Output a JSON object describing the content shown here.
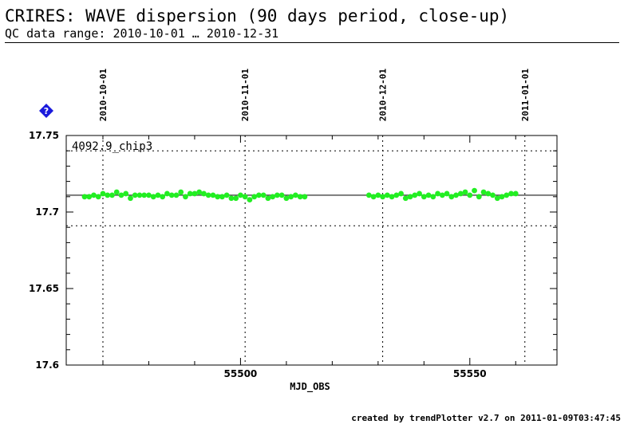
{
  "header": {
    "title": "CRIRES: WAVE dispersion (90 days period, close-up)",
    "subtitle": "QC data range: 2010-10-01 … 2010-12-31"
  },
  "footer": {
    "credit": "created by trendPlotter v2.7 on 2011-01-09T03:47:45"
  },
  "help_icon": {
    "icon": "question-diamond-icon",
    "color": "#1a1adc"
  },
  "chart_data": {
    "type": "scatter",
    "title": "CRIRES: WAVE dispersion (90 days period, close-up)",
    "subtitle": "QC data range: 2010-10-01 … 2010-12-31",
    "xlabel": "MJD_OBS",
    "ylabel": "",
    "series_label": "4092.9_chip3",
    "xlim": [
      55462,
      55569
    ],
    "ylim": [
      17.6,
      17.75
    ],
    "x_ticks": [
      55500,
      55550
    ],
    "y_ticks": [
      17.6,
      17.65,
      17.7,
      17.75
    ],
    "y_tick_labels": [
      "17.6",
      "17.65",
      "17.7",
      "17.75"
    ],
    "date_markers": [
      {
        "label": "2010-10-01",
        "mjd": 55470
      },
      {
        "label": "2010-11-01",
        "mjd": 55501
      },
      {
        "label": "2010-12-01",
        "mjd": 55531
      },
      {
        "label": "2011-01-01",
        "mjd": 55562
      }
    ],
    "reference_lines": {
      "mean": 17.711,
      "upper": 17.74,
      "lower": 17.691
    },
    "point_color": "#22ee22",
    "grid": false,
    "series": [
      {
        "points": [
          [
            55466,
            17.71
          ],
          [
            55467,
            17.71
          ],
          [
            55468,
            17.711
          ],
          [
            55469,
            17.71
          ],
          [
            55470,
            17.712
          ],
          [
            55471,
            17.711
          ],
          [
            55472,
            17.711
          ],
          [
            55473,
            17.713
          ],
          [
            55474,
            17.711
          ],
          [
            55475,
            17.712
          ],
          [
            55476,
            17.709
          ],
          [
            55477,
            17.711
          ],
          [
            55478,
            17.711
          ],
          [
            55479,
            17.711
          ],
          [
            55480,
            17.711
          ],
          [
            55481,
            17.71
          ],
          [
            55482,
            17.711
          ],
          [
            55483,
            17.71
          ],
          [
            55484,
            17.712
          ],
          [
            55485,
            17.711
          ],
          [
            55486,
            17.711
          ],
          [
            55487,
            17.713
          ],
          [
            55488,
            17.71
          ],
          [
            55489,
            17.712
          ],
          [
            55490,
            17.712
          ],
          [
            55491,
            17.713
          ],
          [
            55492,
            17.712
          ],
          [
            55493,
            17.711
          ],
          [
            55494,
            17.711
          ],
          [
            55495,
            17.71
          ],
          [
            55496,
            17.71
          ],
          [
            55497,
            17.711
          ],
          [
            55498,
            17.709
          ],
          [
            55499,
            17.709
          ],
          [
            55500,
            17.711
          ],
          [
            55501,
            17.71
          ],
          [
            55502,
            17.708
          ],
          [
            55503,
            17.71
          ],
          [
            55504,
            17.711
          ],
          [
            55505,
            17.711
          ],
          [
            55506,
            17.709
          ],
          [
            55507,
            17.71
          ],
          [
            55508,
            17.711
          ],
          [
            55509,
            17.711
          ],
          [
            55510,
            17.709
          ],
          [
            55511,
            17.71
          ],
          [
            55512,
            17.711
          ],
          [
            55513,
            17.71
          ],
          [
            55514,
            17.71
          ],
          [
            55528,
            17.711
          ],
          [
            55529,
            17.71
          ],
          [
            55530,
            17.711
          ],
          [
            55531,
            17.71
          ],
          [
            55532,
            17.711
          ],
          [
            55533,
            17.71
          ],
          [
            55534,
            17.711
          ],
          [
            55535,
            17.712
          ],
          [
            55536,
            17.709
          ],
          [
            55537,
            17.71
          ],
          [
            55538,
            17.711
          ],
          [
            55539,
            17.712
          ],
          [
            55540,
            17.71
          ],
          [
            55541,
            17.711
          ],
          [
            55542,
            17.71
          ],
          [
            55543,
            17.712
          ],
          [
            55544,
            17.711
          ],
          [
            55545,
            17.712
          ],
          [
            55546,
            17.71
          ],
          [
            55547,
            17.711
          ],
          [
            55548,
            17.712
          ],
          [
            55549,
            17.713
          ],
          [
            55550,
            17.711
          ],
          [
            55551,
            17.714
          ],
          [
            55552,
            17.71
          ],
          [
            55553,
            17.713
          ],
          [
            55554,
            17.712
          ],
          [
            55555,
            17.711
          ],
          [
            55556,
            17.709
          ],
          [
            55557,
            17.71
          ],
          [
            55558,
            17.711
          ],
          [
            55559,
            17.712
          ],
          [
            55560,
            17.712
          ]
        ]
      }
    ]
  }
}
